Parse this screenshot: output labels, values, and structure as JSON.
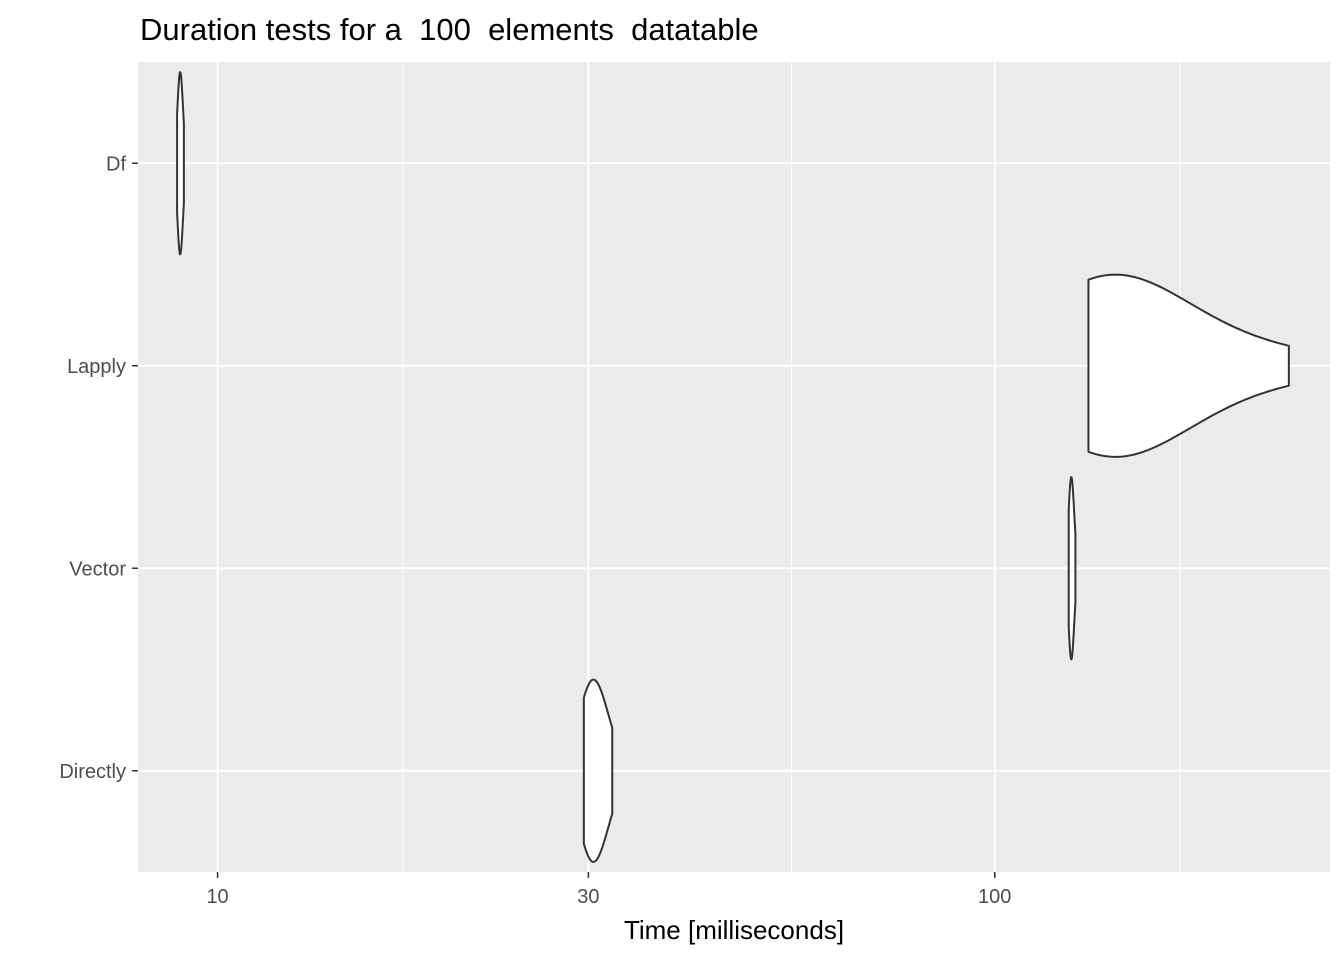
{
  "chart_data": {
    "type": "violin",
    "title": "Duration tests for a  100  elements  datatable",
    "xlabel": "Time [milliseconds]",
    "ylabel": "",
    "x_scale": "log10",
    "xlim": [
      7.9,
      270
    ],
    "x_ticks": [
      10,
      30,
      100
    ],
    "x_tick_labels": [
      "10",
      "30",
      "100"
    ],
    "categories": [
      "Df",
      "Lapply",
      "Vector",
      "Directly"
    ],
    "series": [
      {
        "category": "Df",
        "min": 8.87,
        "q1": 8.92,
        "median": 8.95,
        "q3": 8.99,
        "max": 9.05
      },
      {
        "category": "Lapply",
        "min": 132,
        "q1": 133,
        "median": 138,
        "q3": 170,
        "max": 239
      },
      {
        "category": "Vector",
        "min": 124.5,
        "q1": 125,
        "median": 125.5,
        "q3": 126,
        "max": 127
      },
      {
        "category": "Directly",
        "min": 29.6,
        "q1": 29.9,
        "median": 30.4,
        "q3": 31.2,
        "max": 32.2
      }
    ],
    "grid": true,
    "panel_background": "#ebebeb",
    "grid_color": "#ffffff",
    "outline_color": "#333333"
  }
}
